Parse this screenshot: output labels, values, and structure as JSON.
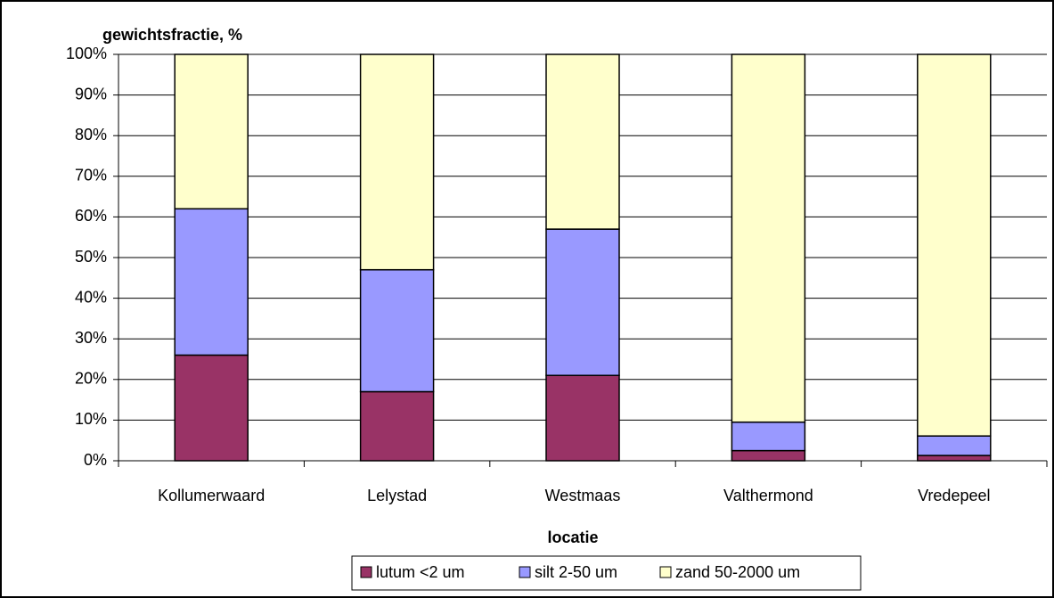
{
  "chart_data": {
    "type": "stacked-bar",
    "y_label": "gewichtsfractie, %",
    "x_label": "locatie",
    "categories": [
      "Kollumerwaard",
      "Lelystad",
      "Westmaas",
      "Valthermond",
      "Vredepeel"
    ],
    "series": [
      {
        "name": "lutum <2 um",
        "color": "#993366",
        "values": [
          26,
          17,
          21,
          2.5,
          1.3
        ]
      },
      {
        "name": "silt 2-50 um",
        "color": "#9999ff",
        "values": [
          36,
          30,
          36,
          7,
          4.8
        ]
      },
      {
        "name": "zand 50-2000 um",
        "color": "#ffffcc",
        "values": [
          38,
          53,
          43,
          90.5,
          93.9
        ]
      }
    ],
    "ylim": [
      0,
      100
    ],
    "yticks": [
      {
        "value": 0,
        "label": "0%"
      },
      {
        "value": 10,
        "label": "10%"
      },
      {
        "value": 20,
        "label": "20%"
      },
      {
        "value": 30,
        "label": "30%"
      },
      {
        "value": 40,
        "label": "40%"
      },
      {
        "value": 50,
        "label": "50%"
      },
      {
        "value": 60,
        "label": "60%"
      },
      {
        "value": 70,
        "label": "70%"
      },
      {
        "value": 80,
        "label": "80%"
      },
      {
        "value": 90,
        "label": "90%"
      },
      {
        "value": 100,
        "label": "100%"
      }
    ],
    "grid": true
  }
}
